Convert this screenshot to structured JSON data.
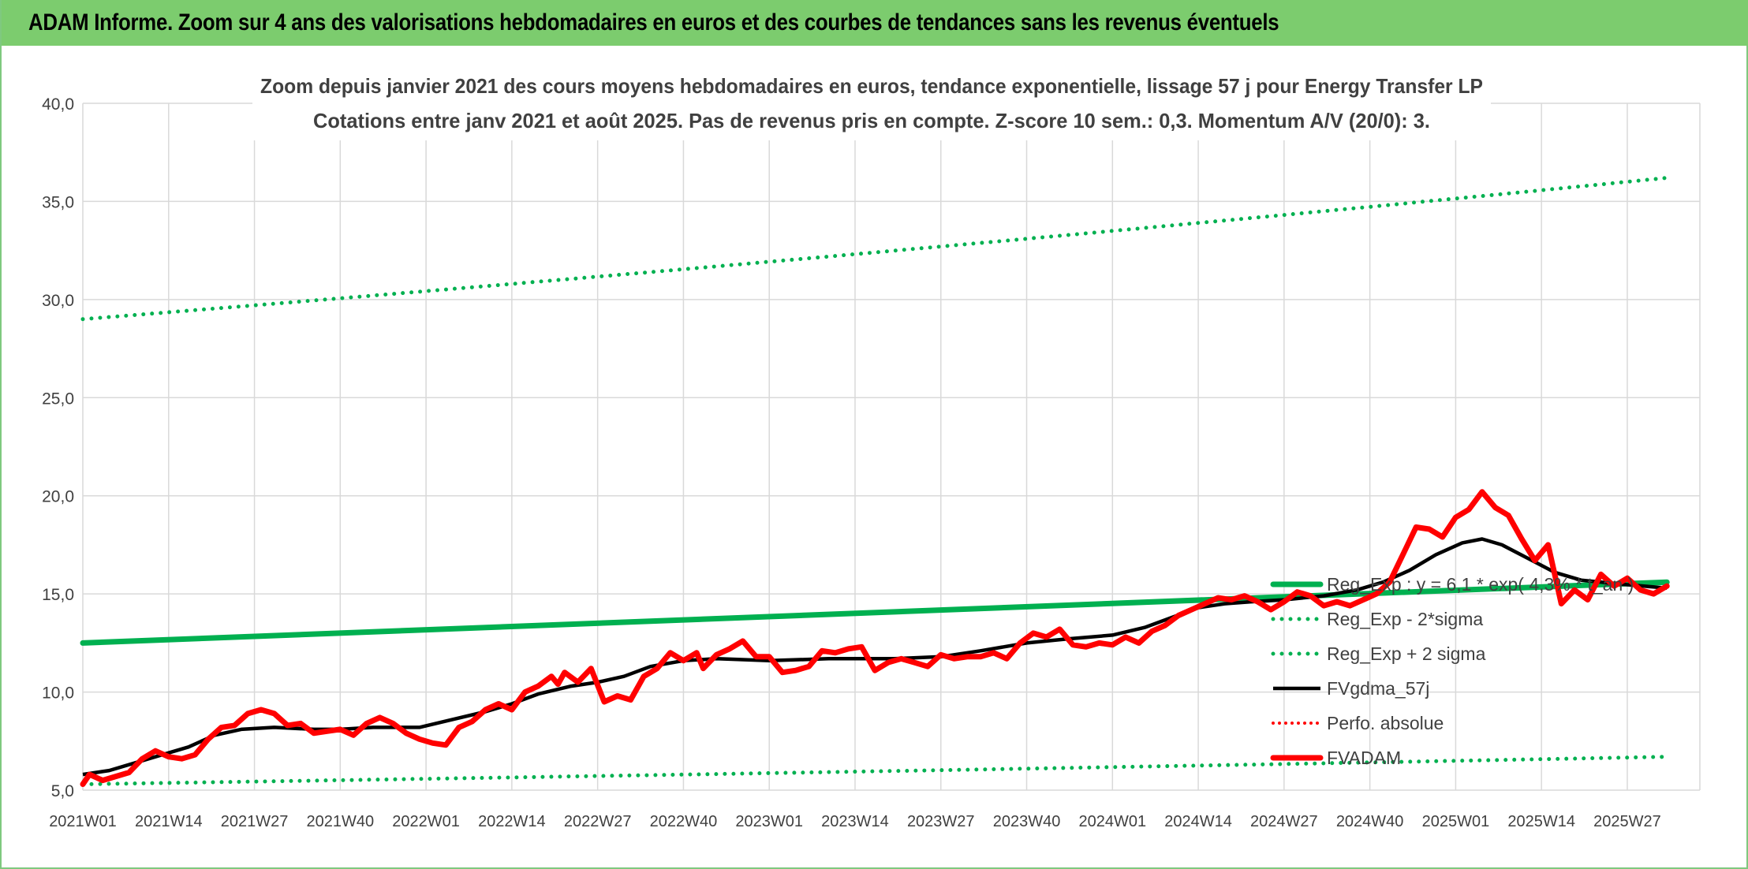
{
  "banner": {
    "title": "ADAM Informe. Zoom sur 4 ans des valorisations hebdomadaires en euros et des courbes de tendances sans les revenus éventuels"
  },
  "colors": {
    "banner_bg": "#7ccc6e",
    "grid": "#d9d9d9",
    "green": "#00b050",
    "red": "#ff0000",
    "black": "#000000",
    "axis_text": "#404040",
    "title_text": "#404040"
  },
  "chart_data": {
    "type": "line",
    "title_line1": "Zoom depuis janvier 2021 des cours moyens hebdomadaires en euros, tendance exponentielle, lissage 57 j pour Energy Transfer LP",
    "title_line2": "Cotations entre janv 2021 et août 2025. Pas de revenus pris en compte. Z-score 10 sem.: 0,3. Momentum A/V (20/0): 3.",
    "xlabel": "",
    "ylabel": "",
    "ylim": [
      5,
      40
    ],
    "yticks": [
      "5,0",
      "10,0",
      "15,0",
      "20,0",
      "25,0",
      "30,0",
      "35,0",
      "40,0"
    ],
    "xticks": [
      "2021W01",
      "2021W14",
      "2021W27",
      "2021W40",
      "2022W01",
      "2022W14",
      "2022W27",
      "2022W40",
      "2023W01",
      "2023W14",
      "2023W27",
      "2023W40",
      "2024W01",
      "2024W14",
      "2024W27",
      "2024W40",
      "2025W01",
      "2025W14",
      "2025W27"
    ],
    "x_tick_week_index": [
      0,
      13,
      26,
      39,
      52,
      65,
      78,
      91,
      104,
      117,
      130,
      143,
      156,
      169,
      182,
      195,
      208,
      221,
      234
    ],
    "week_count": 246,
    "grid": true,
    "legend_position": "right",
    "series": [
      {
        "name": "Reg_Exp : y = 6,1 * exp( 4,3% * t_an )",
        "key": "reg",
        "style": "solid-green-thick",
        "points": [
          [
            "2021W01",
            12.5
          ],
          [
            "2025W33",
            15.6
          ]
        ]
      },
      {
        "name": "Reg_Exp - 2*sigma",
        "key": "low",
        "style": "dotted-green",
        "points": [
          [
            "2021W01",
            5.3
          ],
          [
            "2025W33",
            6.7
          ]
        ]
      },
      {
        "name": "Reg_Exp + 2 sigma",
        "key": "high",
        "style": "dotted-green",
        "points": [
          [
            "2021W01",
            29.0
          ],
          [
            "2025W33",
            36.2
          ]
        ]
      },
      {
        "name": "FVgdma_57j",
        "key": "ma",
        "style": "solid-black",
        "points": [
          [
            "2021W01",
            5.8
          ],
          [
            "2021W05",
            6.0
          ],
          [
            "2021W09",
            6.4
          ],
          [
            "2021W13",
            6.8
          ],
          [
            "2021W17",
            7.2
          ],
          [
            "2021W21",
            7.8
          ],
          [
            "2021W25",
            8.1
          ],
          [
            "2021W30",
            8.2
          ],
          [
            "2021W36",
            8.1
          ],
          [
            "2021W40",
            8.1
          ],
          [
            "2021W45",
            8.2
          ],
          [
            "2021W52",
            8.2
          ],
          [
            "2022W05",
            8.6
          ],
          [
            "2022W10",
            9.0
          ],
          [
            "2022W14",
            9.4
          ],
          [
            "2022W18",
            9.9
          ],
          [
            "2022W23",
            10.3
          ],
          [
            "2022W27",
            10.5
          ],
          [
            "2022W31",
            10.8
          ],
          [
            "2022W35",
            11.3
          ],
          [
            "2022W40",
            11.6
          ],
          [
            "2022W45",
            11.7
          ],
          [
            "2023W01",
            11.6
          ],
          [
            "2023W10",
            11.7
          ],
          [
            "2023W20",
            11.7
          ],
          [
            "2023W27",
            11.8
          ],
          [
            "2023W33",
            12.1
          ],
          [
            "2023W40",
            12.5
          ],
          [
            "2023W46",
            12.7
          ],
          [
            "2024W01",
            12.9
          ],
          [
            "2024W06",
            13.3
          ],
          [
            "2024W10",
            13.8
          ],
          [
            "2024W14",
            14.3
          ],
          [
            "2024W18",
            14.5
          ],
          [
            "2024W22",
            14.6
          ],
          [
            "2024W27",
            14.7
          ],
          [
            "2024W33",
            14.9
          ],
          [
            "2024W38",
            15.2
          ],
          [
            "2024W42",
            15.6
          ],
          [
            "2024W46",
            16.2
          ],
          [
            "2024W50",
            17.0
          ],
          [
            "2025W02",
            17.6
          ],
          [
            "2025W05",
            17.8
          ],
          [
            "2025W08",
            17.5
          ],
          [
            "2025W12",
            16.8
          ],
          [
            "2025W16",
            16.1
          ],
          [
            "2025W20",
            15.7
          ],
          [
            "2025W26",
            15.5
          ],
          [
            "2025W33",
            15.3
          ]
        ]
      },
      {
        "name": "Perfo. absolue",
        "key": "perf",
        "style": "dotted-red",
        "points": []
      },
      {
        "name": "FVADAM",
        "key": "price",
        "style": "solid-red-thick",
        "points": [
          [
            "2021W01",
            5.3
          ],
          [
            "2021W02",
            5.8
          ],
          [
            "2021W04",
            5.5
          ],
          [
            "2021W06",
            5.7
          ],
          [
            "2021W08",
            5.9
          ],
          [
            "2021W10",
            6.6
          ],
          [
            "2021W12",
            7.0
          ],
          [
            "2021W14",
            6.7
          ],
          [
            "2021W16",
            6.6
          ],
          [
            "2021W18",
            6.8
          ],
          [
            "2021W20",
            7.6
          ],
          [
            "2021W22",
            8.2
          ],
          [
            "2021W24",
            8.3
          ],
          [
            "2021W26",
            8.9
          ],
          [
            "2021W28",
            9.1
          ],
          [
            "2021W30",
            8.9
          ],
          [
            "2021W32",
            8.3
          ],
          [
            "2021W34",
            8.4
          ],
          [
            "2021W36",
            7.9
          ],
          [
            "2021W38",
            8.0
          ],
          [
            "2021W40",
            8.1
          ],
          [
            "2021W42",
            7.8
          ],
          [
            "2021W44",
            8.4
          ],
          [
            "2021W46",
            8.7
          ],
          [
            "2021W48",
            8.4
          ],
          [
            "2021W50",
            7.9
          ],
          [
            "2021W52",
            7.6
          ],
          [
            "2022W02",
            7.4
          ],
          [
            "2022W04",
            7.3
          ],
          [
            "2022W06",
            8.2
          ],
          [
            "2022W08",
            8.5
          ],
          [
            "2022W10",
            9.1
          ],
          [
            "2022W12",
            9.4
          ],
          [
            "2022W14",
            9.1
          ],
          [
            "2022W16",
            10.0
          ],
          [
            "2022W18",
            10.3
          ],
          [
            "2022W20",
            10.8
          ],
          [
            "2022W21",
            10.4
          ],
          [
            "2022W22",
            11.0
          ],
          [
            "2022W24",
            10.5
          ],
          [
            "2022W26",
            11.2
          ],
          [
            "2022W28",
            9.5
          ],
          [
            "2022W30",
            9.8
          ],
          [
            "2022W32",
            9.6
          ],
          [
            "2022W34",
            10.8
          ],
          [
            "2022W36",
            11.2
          ],
          [
            "2022W38",
            12.0
          ],
          [
            "2022W40",
            11.6
          ],
          [
            "2022W42",
            12.0
          ],
          [
            "2022W43",
            11.2
          ],
          [
            "2022W45",
            11.9
          ],
          [
            "2022W47",
            12.2
          ],
          [
            "2022W49",
            12.6
          ],
          [
            "2022W51",
            11.8
          ],
          [
            "2023W01",
            11.8
          ],
          [
            "2023W03",
            11.0
          ],
          [
            "2023W05",
            11.1
          ],
          [
            "2023W07",
            11.3
          ],
          [
            "2023W09",
            12.1
          ],
          [
            "2023W11",
            12.0
          ],
          [
            "2023W13",
            12.2
          ],
          [
            "2023W15",
            12.3
          ],
          [
            "2023W17",
            11.1
          ],
          [
            "2023W19",
            11.5
          ],
          [
            "2023W21",
            11.7
          ],
          [
            "2023W23",
            11.5
          ],
          [
            "2023W25",
            11.3
          ],
          [
            "2023W27",
            11.9
          ],
          [
            "2023W29",
            11.7
          ],
          [
            "2023W31",
            11.8
          ],
          [
            "2023W33",
            11.8
          ],
          [
            "2023W35",
            12.0
          ],
          [
            "2023W37",
            11.7
          ],
          [
            "2023W39",
            12.5
          ],
          [
            "2023W41",
            13.0
          ],
          [
            "2023W43",
            12.8
          ],
          [
            "2023W45",
            13.2
          ],
          [
            "2023W47",
            12.4
          ],
          [
            "2023W49",
            12.3
          ],
          [
            "2023W51",
            12.5
          ],
          [
            "2024W01",
            12.4
          ],
          [
            "2024W03",
            12.8
          ],
          [
            "2024W05",
            12.5
          ],
          [
            "2024W07",
            13.1
          ],
          [
            "2024W09",
            13.4
          ],
          [
            "2024W11",
            13.9
          ],
          [
            "2024W13",
            14.2
          ],
          [
            "2024W15",
            14.5
          ],
          [
            "2024W17",
            14.8
          ],
          [
            "2024W19",
            14.7
          ],
          [
            "2024W21",
            14.9
          ],
          [
            "2024W23",
            14.6
          ],
          [
            "2024W25",
            14.2
          ],
          [
            "2024W27",
            14.6
          ],
          [
            "2024W29",
            15.1
          ],
          [
            "2024W31",
            14.9
          ],
          [
            "2024W33",
            14.4
          ],
          [
            "2024W35",
            14.6
          ],
          [
            "2024W37",
            14.4
          ],
          [
            "2024W39",
            14.7
          ],
          [
            "2024W41",
            15.0
          ],
          [
            "2024W43",
            15.6
          ],
          [
            "2024W45",
            17.0
          ],
          [
            "2024W47",
            18.4
          ],
          [
            "2024W49",
            18.3
          ],
          [
            "2024W51",
            17.9
          ],
          [
            "2025W01",
            18.9
          ],
          [
            "2025W03",
            19.3
          ],
          [
            "2025W05",
            20.2
          ],
          [
            "2025W07",
            19.4
          ],
          [
            "2025W09",
            19.0
          ],
          [
            "2025W11",
            17.8
          ],
          [
            "2025W13",
            16.7
          ],
          [
            "2025W15",
            17.5
          ],
          [
            "2025W17",
            14.5
          ],
          [
            "2025W19",
            15.2
          ],
          [
            "2025W21",
            14.7
          ],
          [
            "2025W23",
            16.0
          ],
          [
            "2025W25",
            15.4
          ],
          [
            "2025W27",
            15.8
          ],
          [
            "2025W29",
            15.2
          ],
          [
            "2025W31",
            15.0
          ],
          [
            "2025W33",
            15.4
          ]
        ]
      }
    ]
  }
}
